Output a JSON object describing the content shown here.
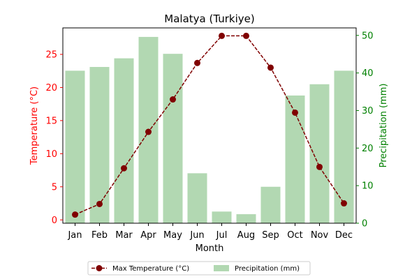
{
  "chart_data": {
    "type": "bar",
    "title": "Malatya (Turkiye)",
    "xlabel": "Month",
    "categories": [
      "Jan",
      "Feb",
      "Mar",
      "Apr",
      "May",
      "Jun",
      "Jul",
      "Aug",
      "Sep",
      "Oct",
      "Nov",
      "Dec"
    ],
    "y_left": {
      "label": "Temperature (°C)",
      "color": "#ff0000",
      "ylim": [
        -0.5,
        29
      ],
      "ticks": [
        0,
        5,
        10,
        15,
        20,
        25
      ]
    },
    "y_right": {
      "label": "Precipitation (mm)",
      "color": "#008000",
      "ylim": [
        0,
        52
      ],
      "ticks": [
        0,
        10,
        20,
        30,
        40,
        50
      ]
    },
    "series": [
      {
        "name": "Max Temperature (°C)",
        "type": "line",
        "axis": "left",
        "color": "#800000",
        "values": [
          0.8,
          2.4,
          7.8,
          13.3,
          18.2,
          23.7,
          27.8,
          27.8,
          23.0,
          16.2,
          8.0,
          2.5
        ]
      },
      {
        "name": "Precipitation (mm)",
        "type": "bar",
        "axis": "right",
        "color": "#b2d8b2",
        "values": [
          40.6,
          41.6,
          43.9,
          49.6,
          45.1,
          13.3,
          3.1,
          2.4,
          9.7,
          34.0,
          37.0,
          40.6
        ]
      }
    ],
    "legend_position": "bottom-center"
  }
}
